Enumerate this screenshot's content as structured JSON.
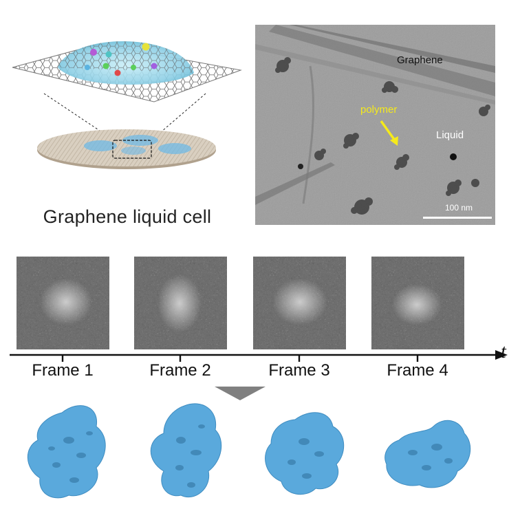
{
  "illustration": {
    "caption": "Graphene liquid cell"
  },
  "tem_image": {
    "graphene_label": "Graphene",
    "polymer_label": "polymer",
    "liquid_label": "Liquid",
    "scale_bar_label": "100 nm"
  },
  "frames": [
    {
      "label": "Frame 1"
    },
    {
      "label": "Frame 2"
    },
    {
      "label": "Frame 3"
    },
    {
      "label": "Frame 4"
    }
  ],
  "time_axis_label": "t",
  "colors": {
    "reconstruction_blue": "#5aa9dc",
    "liquid_blue": "#8fd0e6",
    "polymer_arrow_yellow": "#f5ea1b",
    "grid_beige": "#d9cfc0"
  }
}
